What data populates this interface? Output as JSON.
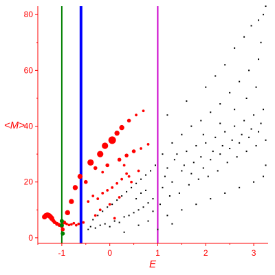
{
  "chart_data": {
    "type": "scatter",
    "xlabel": "E",
    "ylabel": "<M>",
    "xlim": [
      -1.5,
      3.3
    ],
    "ylim": [
      -2,
      84
    ],
    "x_ticks": [
      "-1",
      "0",
      "1",
      "2",
      "3"
    ],
    "x_tick_values": [
      -1,
      0,
      1,
      2,
      3
    ],
    "y_ticks": [
      "0",
      "20",
      "40",
      "60",
      "80"
    ],
    "y_tick_values": [
      0,
      20,
      40,
      60,
      80
    ],
    "grid": false,
    "legend": "none",
    "colors": {
      "axis": "#ff0000",
      "points_black": "#000000",
      "points_red": "#ff0000"
    },
    "vlines": [
      {
        "x": -1.0,
        "color": "#008000"
      },
      {
        "x": -0.6,
        "color": "#0000ff"
      },
      {
        "x": 1.0,
        "color": "#cc00cc"
      }
    ],
    "series_red": [
      {
        "x": -1.36,
        "y": 7.5,
        "s": 3
      },
      {
        "x": -1.33,
        "y": 8.0,
        "s": 3
      },
      {
        "x": -1.3,
        "y": 8.2,
        "s": 3
      },
      {
        "x": -1.27,
        "y": 8.0,
        "s": 3
      },
      {
        "x": -1.24,
        "y": 7.6,
        "s": 3
      },
      {
        "x": -1.21,
        "y": 7.0,
        "s": 3
      },
      {
        "x": -1.18,
        "y": 6.2,
        "s": 2
      },
      {
        "x": -1.15,
        "y": 5.6,
        "s": 2
      },
      {
        "x": -1.1,
        "y": 5.0,
        "s": 2
      },
      {
        "x": -1.05,
        "y": 4.6,
        "s": 2
      },
      {
        "x": -1.0,
        "y": 4.2,
        "s": 2
      },
      {
        "x": -0.98,
        "y": 3.0,
        "s": 2
      },
      {
        "x": -0.95,
        "y": 5.5,
        "s": 2
      },
      {
        "x": -0.9,
        "y": 5.0,
        "s": 1
      },
      {
        "x": -0.85,
        "y": 4.6,
        "s": 1
      },
      {
        "x": -0.8,
        "y": 4.8,
        "s": 1
      },
      {
        "x": -0.75,
        "y": 5.2,
        "s": 1
      },
      {
        "x": -0.7,
        "y": 4.5,
        "s": 1
      },
      {
        "x": -0.65,
        "y": 5.0,
        "s": 1
      },
      {
        "x": -0.55,
        "y": 5.5,
        "s": 1
      },
      {
        "x": -0.45,
        "y": 13.0,
        "s": 1
      },
      {
        "x": -0.35,
        "y": 15.0,
        "s": 1
      },
      {
        "x": -0.25,
        "y": 14.0,
        "s": 1
      },
      {
        "x": -0.15,
        "y": 16.0,
        "s": 1
      },
      {
        "x": -0.05,
        "y": 17.0,
        "s": 1
      },
      {
        "x": 0.05,
        "y": 18.0,
        "s": 1
      },
      {
        "x": 0.15,
        "y": 19.5,
        "s": 1
      },
      {
        "x": 0.25,
        "y": 21.0,
        "s": 1
      },
      {
        "x": 0.35,
        "y": 23.0,
        "s": 1
      },
      {
        "x": -0.2,
        "y": 10.0,
        "s": 1
      },
      {
        "x": 0.0,
        "y": 12.0,
        "s": 1
      },
      {
        "x": 0.2,
        "y": 14.5,
        "s": 1
      },
      {
        "x": -0.3,
        "y": 8.0,
        "s": 1
      },
      {
        "x": 0.1,
        "y": 7.0,
        "s": 1
      },
      {
        "x": -0.88,
        "y": 9.0,
        "s": 3
      },
      {
        "x": -0.8,
        "y": 13.0,
        "s": 3
      },
      {
        "x": -0.72,
        "y": 18.0,
        "s": 3
      },
      {
        "x": -0.62,
        "y": 22.0,
        "s": 3
      },
      {
        "x": -0.4,
        "y": 27.0,
        "s": 4
      },
      {
        "x": -0.2,
        "y": 30.0,
        "s": 4
      },
      {
        "x": -0.1,
        "y": 33.0,
        "s": 4
      },
      {
        "x": 0.05,
        "y": 35.0,
        "s": 5
      },
      {
        "x": 0.15,
        "y": 37.5,
        "s": 3
      },
      {
        "x": 0.25,
        "y": 39.5,
        "s": 3
      },
      {
        "x": 0.4,
        "y": 42.0,
        "s": 2
      },
      {
        "x": 0.55,
        "y": 44.0,
        "s": 1
      },
      {
        "x": 0.7,
        "y": 45.5,
        "s": 1
      },
      {
        "x": -0.3,
        "y": 25.0,
        "s": 2
      },
      {
        "x": -0.05,
        "y": 26.0,
        "s": 2
      },
      {
        "x": 0.2,
        "y": 28.0,
        "s": 2
      },
      {
        "x": 0.35,
        "y": 29.5,
        "s": 2
      },
      {
        "x": 0.5,
        "y": 31.0,
        "s": 2
      },
      {
        "x": 0.65,
        "y": 32.0,
        "s": 1
      },
      {
        "x": 0.8,
        "y": 33.5,
        "s": 1
      },
      {
        "x": 0.6,
        "y": 24.0,
        "s": 1
      },
      {
        "x": 0.4,
        "y": 22.0,
        "s": 1
      },
      {
        "x": -0.5,
        "y": 20.0,
        "s": 2
      },
      {
        "x": -0.15,
        "y": 23.5,
        "s": 1
      },
      {
        "x": 0.3,
        "y": 26.0,
        "s": 1
      },
      {
        "x": 0.45,
        "y": 20.0,
        "s": 1
      }
    ],
    "series_green": [
      {
        "x": -1.0,
        "y": 6.0
      },
      {
        "x": -1.0,
        "y": 4.5
      },
      {
        "x": -0.98,
        "y": 1.5
      }
    ],
    "series_black": [
      {
        "x": -0.45,
        "y": 3.0
      },
      {
        "x": -0.4,
        "y": 4.0
      },
      {
        "x": -0.3,
        "y": 3.5
      },
      {
        "x": -0.2,
        "y": 4.5
      },
      {
        "x": -0.1,
        "y": 5.0
      },
      {
        "x": 0.0,
        "y": 4.0
      },
      {
        "x": 0.1,
        "y": 6.0
      },
      {
        "x": 0.2,
        "y": 5.5
      },
      {
        "x": 0.3,
        "y": 7.5
      },
      {
        "x": 0.4,
        "y": 8.0
      },
      {
        "x": 0.5,
        "y": 9.0
      },
      {
        "x": 0.6,
        "y": 10.0
      },
      {
        "x": 0.7,
        "y": 11.0
      },
      {
        "x": 0.8,
        "y": 12.5
      },
      {
        "x": 0.9,
        "y": 9.5
      },
      {
        "x": -0.35,
        "y": 6.5
      },
      {
        "x": -0.25,
        "y": 8.0
      },
      {
        "x": -0.15,
        "y": 9.5
      },
      {
        "x": -0.05,
        "y": 11.0
      },
      {
        "x": 0.05,
        "y": 12.0
      },
      {
        "x": 0.15,
        "y": 13.5
      },
      {
        "x": 0.25,
        "y": 15.0
      },
      {
        "x": 0.35,
        "y": 16.5
      },
      {
        "x": 0.45,
        "y": 18.0
      },
      {
        "x": 0.55,
        "y": 19.5
      },
      {
        "x": 0.65,
        "y": 21.0
      },
      {
        "x": 0.75,
        "y": 22.5
      },
      {
        "x": 0.85,
        "y": 24.0
      },
      {
        "x": 0.95,
        "y": 26.0
      },
      {
        "x": 0.55,
        "y": 14.0
      },
      {
        "x": 0.65,
        "y": 16.0
      },
      {
        "x": 0.75,
        "y": 17.0
      },
      {
        "x": 0.3,
        "y": 2.0
      },
      {
        "x": 0.6,
        "y": 4.5
      },
      {
        "x": 0.8,
        "y": 6.0
      },
      {
        "x": 0.9,
        "y": 14.0
      },
      {
        "x": 1.05,
        "y": 12.0
      },
      {
        "x": 1.1,
        "y": 18.0
      },
      {
        "x": 1.15,
        "y": 22.0
      },
      {
        "x": 1.2,
        "y": 25.0
      },
      {
        "x": 1.25,
        "y": 15.0
      },
      {
        "x": 1.3,
        "y": 20.0
      },
      {
        "x": 1.35,
        "y": 28.0
      },
      {
        "x": 1.4,
        "y": 30.0
      },
      {
        "x": 1.45,
        "y": 16.0
      },
      {
        "x": 1.5,
        "y": 24.0
      },
      {
        "x": 1.55,
        "y": 26.0
      },
      {
        "x": 1.6,
        "y": 31.0
      },
      {
        "x": 1.65,
        "y": 19.0
      },
      {
        "x": 1.7,
        "y": 23.0
      },
      {
        "x": 1.75,
        "y": 27.0
      },
      {
        "x": 1.8,
        "y": 33.0
      },
      {
        "x": 1.85,
        "y": 21.0
      },
      {
        "x": 1.9,
        "y": 29.0
      },
      {
        "x": 1.95,
        "y": 25.0
      },
      {
        "x": 2.0,
        "y": 34.0
      },
      {
        "x": 2.05,
        "y": 22.0
      },
      {
        "x": 2.1,
        "y": 28.0
      },
      {
        "x": 2.15,
        "y": 31.0
      },
      {
        "x": 2.2,
        "y": 36.0
      },
      {
        "x": 2.25,
        "y": 24.0
      },
      {
        "x": 2.3,
        "y": 30.0
      },
      {
        "x": 2.35,
        "y": 33.0
      },
      {
        "x": 2.4,
        "y": 38.0
      },
      {
        "x": 2.45,
        "y": 27.0
      },
      {
        "x": 2.5,
        "y": 32.0
      },
      {
        "x": 2.55,
        "y": 35.0
      },
      {
        "x": 2.6,
        "y": 40.0
      },
      {
        "x": 2.65,
        "y": 29.0
      },
      {
        "x": 2.7,
        "y": 34.0
      },
      {
        "x": 2.75,
        "y": 37.0
      },
      {
        "x": 2.8,
        "y": 42.0
      },
      {
        "x": 2.85,
        "y": 31.0
      },
      {
        "x": 2.9,
        "y": 36.0
      },
      {
        "x": 2.95,
        "y": 39.0
      },
      {
        "x": 3.0,
        "y": 44.0
      },
      {
        "x": 3.05,
        "y": 33.0
      },
      {
        "x": 3.1,
        "y": 38.0
      },
      {
        "x": 3.15,
        "y": 41.0
      },
      {
        "x": 3.2,
        "y": 46.0
      },
      {
        "x": 3.25,
        "y": 35.0
      },
      {
        "x": 1.2,
        "y": 8.0
      },
      {
        "x": 1.5,
        "y": 10.0
      },
      {
        "x": 1.8,
        "y": 12.0
      },
      {
        "x": 2.1,
        "y": 14.0
      },
      {
        "x": 2.4,
        "y": 16.0
      },
      {
        "x": 2.7,
        "y": 18.0
      },
      {
        "x": 3.0,
        "y": 20.0
      },
      {
        "x": 3.2,
        "y": 22.0
      },
      {
        "x": 1.1,
        "y": 30.0
      },
      {
        "x": 1.3,
        "y": 34.0
      },
      {
        "x": 1.5,
        "y": 37.0
      },
      {
        "x": 1.7,
        "y": 40.0
      },
      {
        "x": 1.9,
        "y": 42.0
      },
      {
        "x": 2.1,
        "y": 45.0
      },
      {
        "x": 2.3,
        "y": 48.0
      },
      {
        "x": 2.5,
        "y": 52.0
      },
      {
        "x": 2.7,
        "y": 56.0
      },
      {
        "x": 2.9,
        "y": 60.0
      },
      {
        "x": 3.1,
        "y": 64.0
      },
      {
        "x": 2.4,
        "y": 62.0
      },
      {
        "x": 2.6,
        "y": 68.0
      },
      {
        "x": 2.8,
        "y": 72.0
      },
      {
        "x": 2.95,
        "y": 76.0
      },
      {
        "x": 3.1,
        "y": 78.0
      },
      {
        "x": 3.2,
        "y": 80.0
      },
      {
        "x": 3.25,
        "y": 83.0
      },
      {
        "x": 3.15,
        "y": 70.0
      },
      {
        "x": 2.2,
        "y": 58.0
      },
      {
        "x": 2.0,
        "y": 54.0
      },
      {
        "x": 1.2,
        "y": 44.0
      },
      {
        "x": 1.6,
        "y": 49.0
      },
      {
        "x": 2.85,
        "y": 50.0
      },
      {
        "x": 3.05,
        "y": 54.0
      },
      {
        "x": 1.0,
        "y": 3.0
      },
      {
        "x": 1.3,
        "y": 5.0
      },
      {
        "x": 2.6,
        "y": 46.0
      },
      {
        "x": 2.3,
        "y": 41.0
      },
      {
        "x": 1.95,
        "y": 37.0
      },
      {
        "x": 3.25,
        "y": 26.0
      }
    ]
  }
}
